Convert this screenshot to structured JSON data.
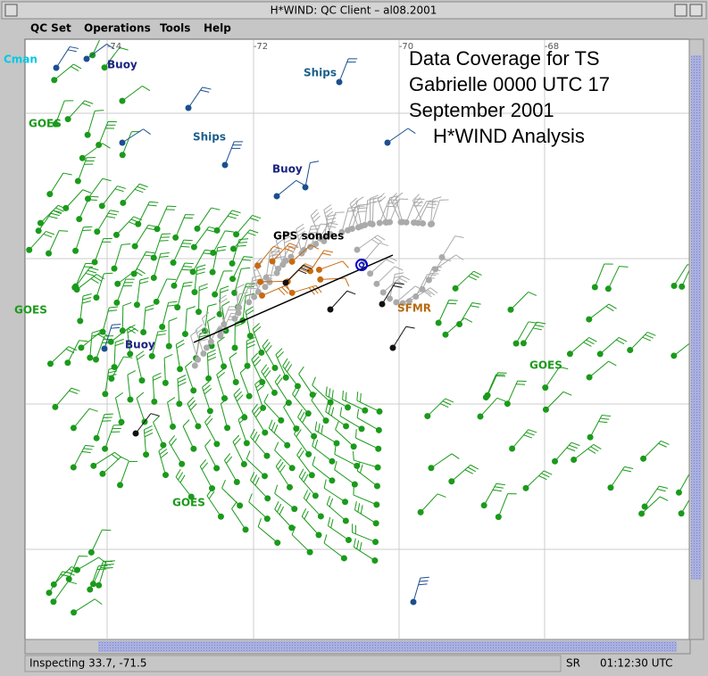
{
  "window": {
    "title": "H*WIND: QC Client – al08.2001"
  },
  "menu": [
    "QC Set",
    "Operations",
    "Tools",
    "Help"
  ],
  "map": {
    "longitude_labels": [
      "-74",
      "-72",
      "-70",
      "-68"
    ],
    "labels": [
      "Cman",
      "Buoy",
      "Ships",
      "GOES",
      "Ships",
      "Buoy",
      "GPS sondes",
      "GOES",
      "SFMR",
      "Buoy",
      "GOES",
      "GOES"
    ],
    "annotation": [
      "Data Coverage for TS",
      "Gabrielle 0000 UTC 17",
      "September 2001",
      "H*WIND Analysis"
    ]
  },
  "status_bar": {
    "inspecting": "Inspecting 33.7, -71.5",
    "mode": "SR",
    "time": "01:12:30 UTC"
  }
}
